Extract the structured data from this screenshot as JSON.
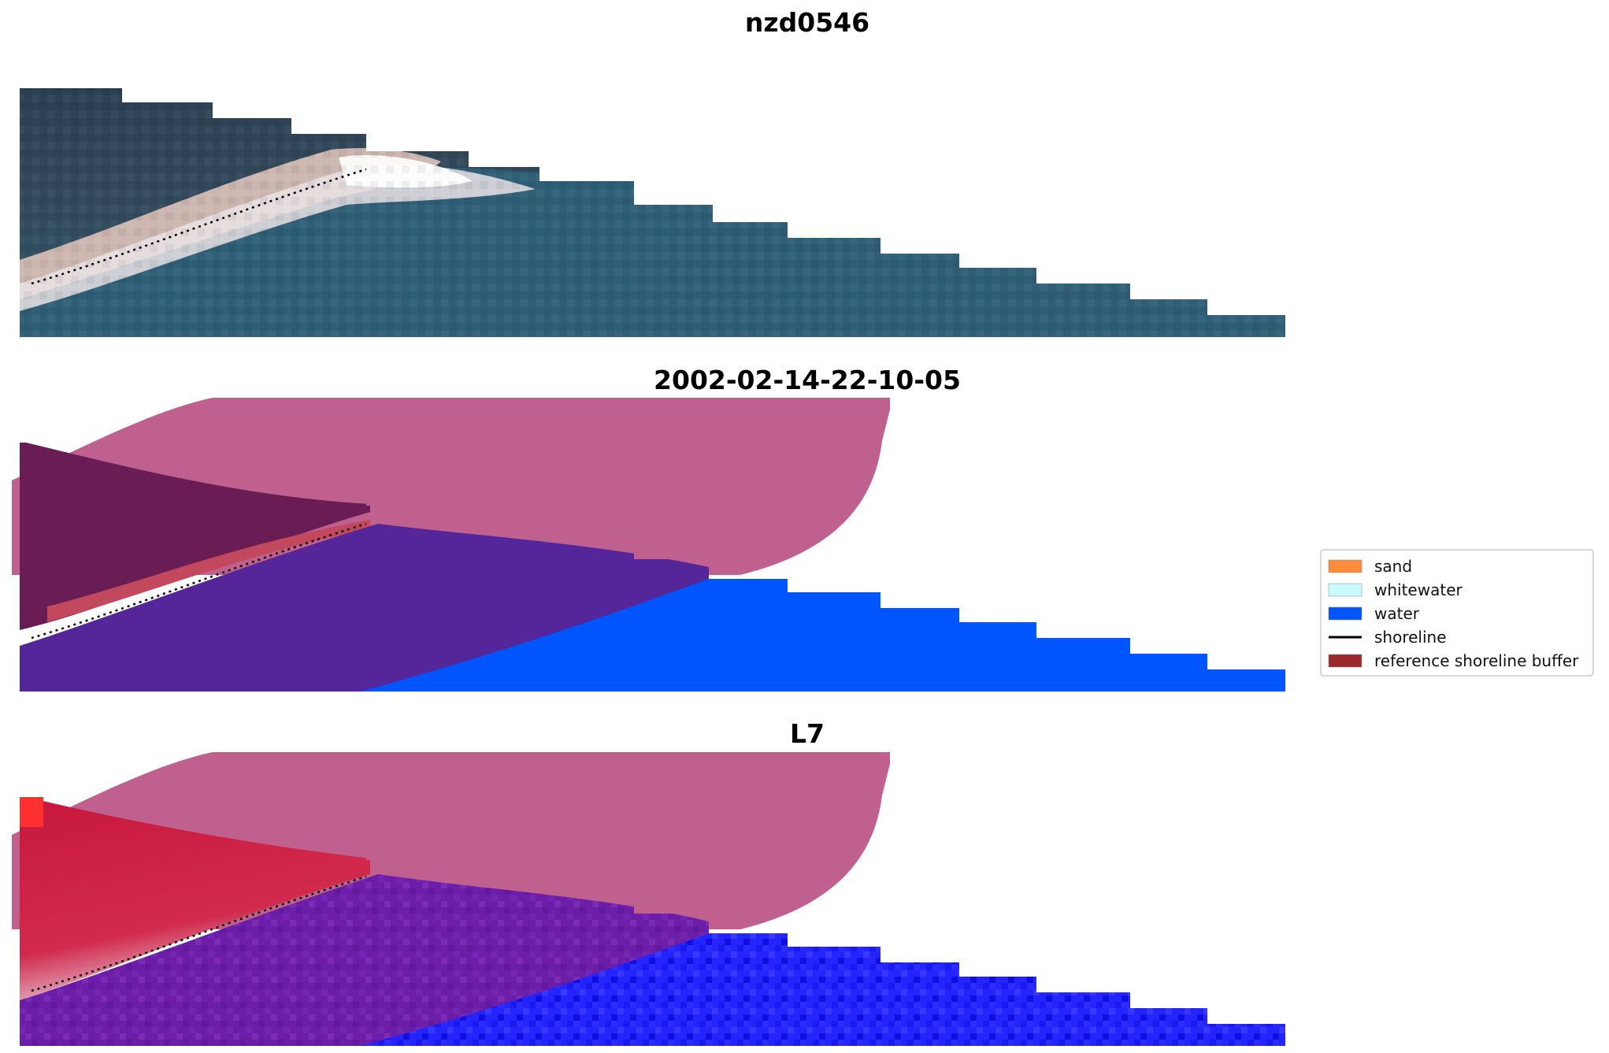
{
  "panels": [
    {
      "title": "nzd0546"
    },
    {
      "title": "2002-02-14-22-10-05"
    },
    {
      "title": "L7"
    }
  ],
  "legend": {
    "items": [
      {
        "label": "sand",
        "color": "#ff8c3a",
        "kind": "patch"
      },
      {
        "label": "whitewater",
        "color": "#c8fbff",
        "kind": "patch"
      },
      {
        "label": "water",
        "color": "#0055ff",
        "kind": "patch"
      },
      {
        "label": "shoreline",
        "color": "#000000",
        "kind": "line"
      },
      {
        "label": "reference shoreline buffer",
        "color": "#9a2a2a",
        "kind": "patch"
      }
    ]
  },
  "colors": {
    "rgb_land": "#2a3d4e",
    "rgb_sea": "#2e5d74",
    "rgb_beach": "#c9b3b0",
    "overlay_pink": "#c0608f",
    "overlay_purple": "#55259a",
    "overlay_blue": "#0055ff",
    "l7_red": "#cc1b3f",
    "l7_purple": "#6a1ca6",
    "l7_blue": "#1f1fff"
  }
}
